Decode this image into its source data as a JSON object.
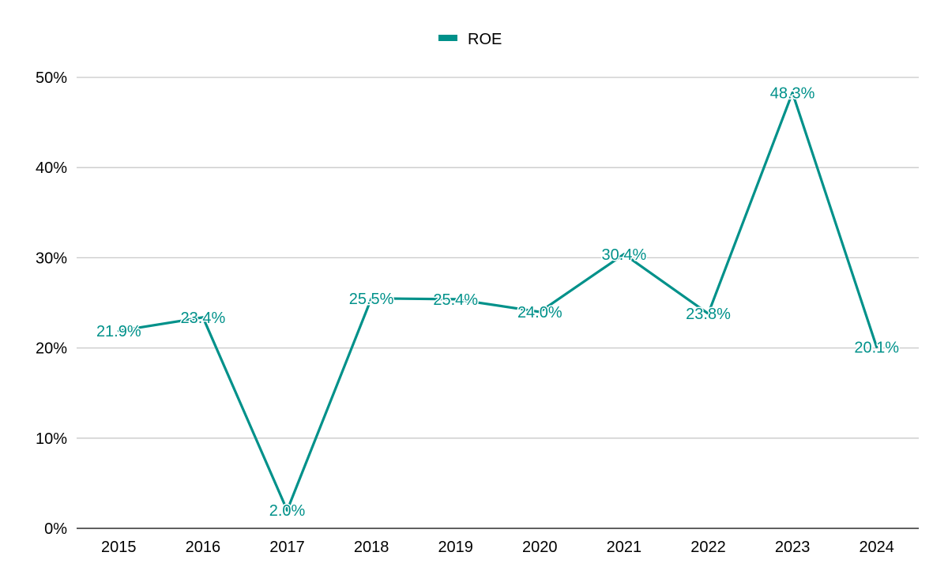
{
  "chart_data": {
    "type": "line",
    "categories": [
      "2015",
      "2016",
      "2017",
      "2018",
      "2019",
      "2020",
      "2021",
      "2022",
      "2023",
      "2024"
    ],
    "series": [
      {
        "name": "ROE",
        "values": [
          21.9,
          23.4,
          2.0,
          25.5,
          25.4,
          24.0,
          30.4,
          23.8,
          48.3,
          20.1
        ],
        "data_labels": [
          "21.9%",
          "23.4%",
          "2.0%",
          "25.5%",
          "25.4%",
          "24.0%",
          "30.4%",
          "23.8%",
          "48.3%",
          "20.1%"
        ],
        "color": "#00918a"
      }
    ],
    "title": "",
    "xlabel": "",
    "ylabel": "",
    "ylim": [
      0,
      50
    ],
    "yticks": [
      0,
      10,
      20,
      30,
      40,
      50
    ],
    "ytick_labels": [
      "0%",
      "10%",
      "20%",
      "30%",
      "40%",
      "50%"
    ],
    "grid": true,
    "legend_position": "top-center"
  },
  "colors": {
    "series": "#00918a",
    "grid": "#c8c8c8",
    "axis": "#000000",
    "text": "#000000"
  }
}
